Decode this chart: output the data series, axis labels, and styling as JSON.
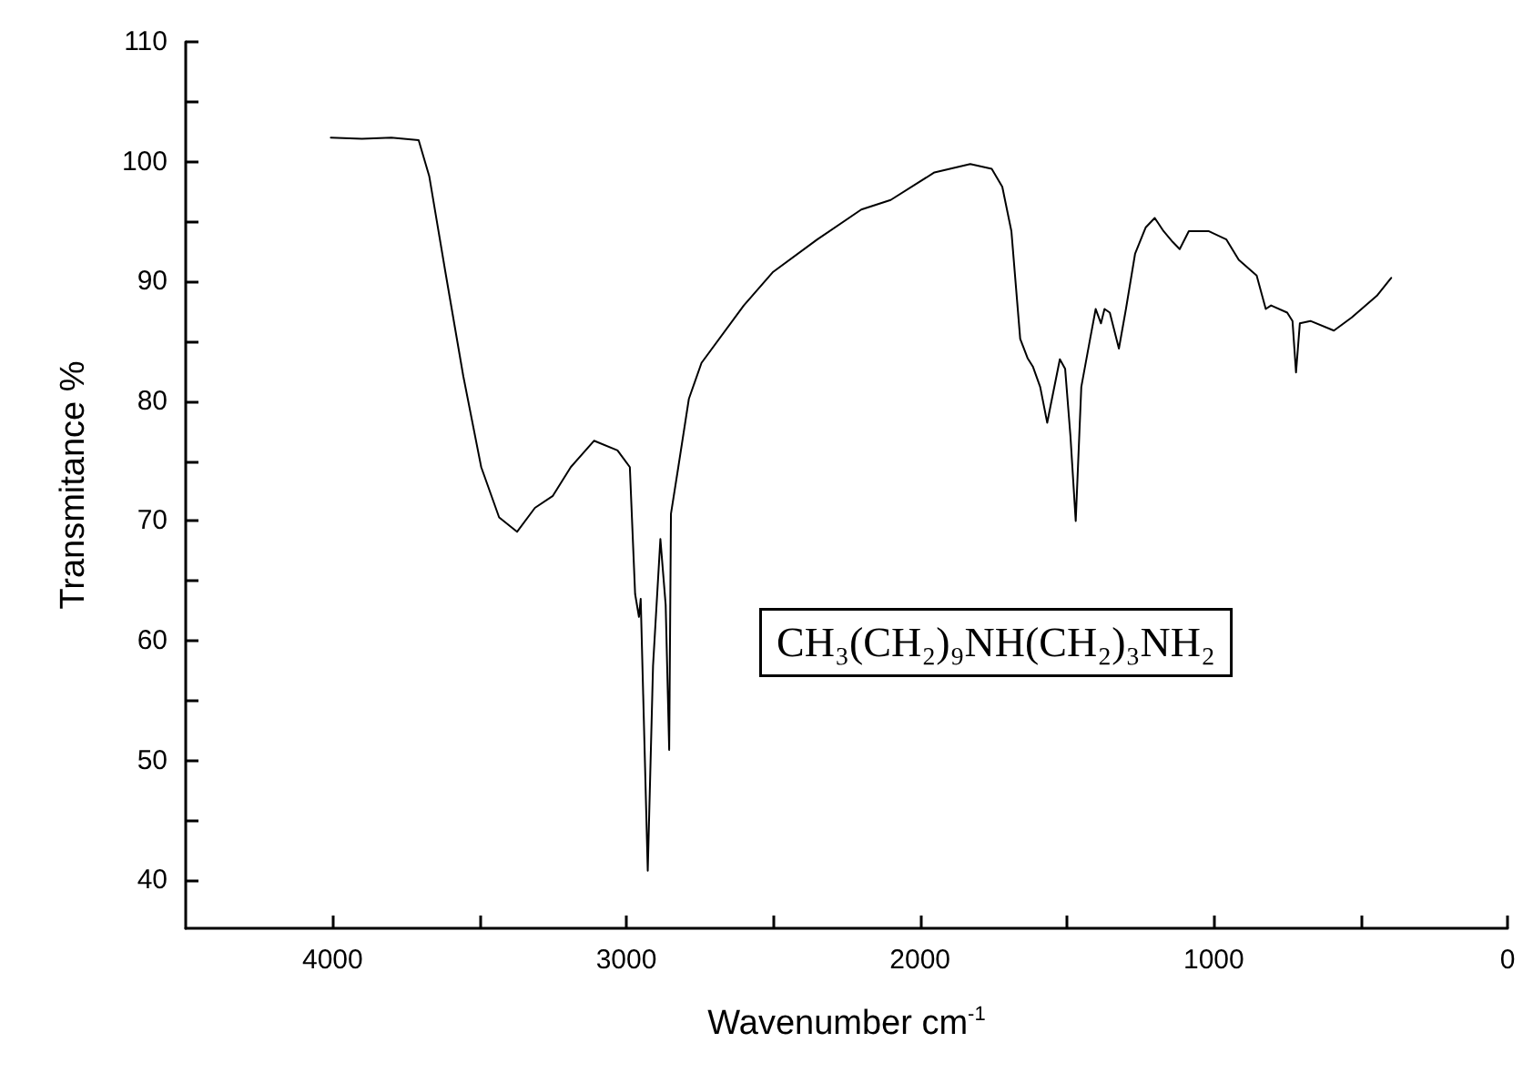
{
  "chart_data": {
    "type": "line",
    "xlabel": "Wavenumber cm$^{-1}$",
    "ylabel": "Transmitance %",
    "annotations": [
      "CH₃(CH₂)₉NH(CH₂)₃NH₂"
    ],
    "xlim": [
      4500,
      0
    ],
    "ylim": [
      36,
      110
    ],
    "xticks": [
      4000,
      {
        "value": 3500,
        "label": null
      },
      3000,
      {
        "value": 2500,
        "label": null
      },
      2000,
      {
        "value": 1500,
        "label": null
      },
      1000,
      {
        "value": 500,
        "label": null
      },
      0
    ],
    "yticks": [
      40,
      {
        "value": 45,
        "label": null
      },
      50,
      {
        "value": 55,
        "label": null
      },
      60,
      {
        "value": 65,
        "label": null
      },
      70,
      {
        "value": 75,
        "label": null
      },
      80,
      {
        "value": 85,
        "label": null
      },
      90,
      {
        "value": 95,
        "label": null
      },
      100,
      {
        "value": 105,
        "label": null
      },
      110
    ],
    "grid": false,
    "marker": "none",
    "line_style": "solid",
    "series": [
      {
        "color": "#000000",
        "x": [
          4006,
          3900,
          3800,
          3707,
          3671,
          3616,
          3555,
          3494,
          3433,
          3372,
          3311,
          3250,
          3189,
          3110,
          3030,
          2988,
          2970,
          2957,
          2951,
          2927,
          2909,
          2884,
          2866,
          2854,
          2848,
          2823,
          2787,
          2744,
          2600,
          2500,
          2350,
          2200,
          2100,
          1951,
          1829,
          1756,
          1720,
          1689,
          1659,
          1634,
          1616,
          1591,
          1567,
          1555,
          1524,
          1506,
          1488,
          1470,
          1451,
          1421,
          1402,
          1384,
          1372,
          1354,
          1323,
          1299,
          1268,
          1232,
          1201,
          1171,
          1140,
          1116,
          1085,
          1018,
          957,
          915,
          854,
          823,
          805,
          750,
          732,
          720,
          707,
          671,
          591,
          530,
          445,
          396
        ],
        "values": [
          102.0,
          101.9,
          102.0,
          101.8,
          98.8,
          90.8,
          82.1,
          74.5,
          70.3,
          69.1,
          71.1,
          72.1,
          74.5,
          76.7,
          75.9,
          74.5,
          63.9,
          62.0,
          63.5,
          40.8,
          57.9,
          68.5,
          63.0,
          50.9,
          70.6,
          74.5,
          80.2,
          83.2,
          88.0,
          90.8,
          93.5,
          96.0,
          96.8,
          99.1,
          99.8,
          99.4,
          97.9,
          94.2,
          85.2,
          83.6,
          82.9,
          81.2,
          78.2,
          79.7,
          83.5,
          82.7,
          77.1,
          70.0,
          81.2,
          85.2,
          87.7,
          86.5,
          87.7,
          87.4,
          84.4,
          87.7,
          92.3,
          94.5,
          95.3,
          94.2,
          93.3,
          92.7,
          94.2,
          94.2,
          93.5,
          91.8,
          90.5,
          87.7,
          88.0,
          87.4,
          86.7,
          82.4,
          86.5,
          86.7,
          85.9,
          87.0,
          88.8,
          90.3
        ]
      }
    ]
  }
}
